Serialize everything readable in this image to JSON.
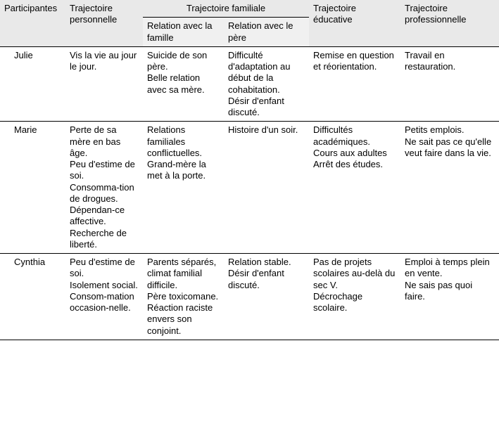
{
  "table": {
    "background_header": "#e9e9e9",
    "border_color": "#000000",
    "font_family": "Arial",
    "font_size_pt": 10,
    "columns": {
      "participants": "Participantes",
      "personal": "Trajectoire personnelle",
      "family_group": "Trajectoire familiale",
      "family_sub1": "Relation avec la famille",
      "family_sub2": "Relation avec le père",
      "education": "Trajectoire éducative",
      "work": "Trajectoire professionnelle"
    },
    "rows": [
      {
        "name": "Julie",
        "personal": "Vis la vie au jour le jour.",
        "family1": "Suicide de son père.\nBelle relation avec sa mère.",
        "family2": "Difficulté d'adaptation au début de la cohabitation.\nDésir d'enfant discuté.",
        "education": "Remise en question et réorientation.",
        "work": "Travail en restauration."
      },
      {
        "name": "Marie",
        "personal": "Perte de sa mère en bas âge.\n Peu d'estime de soi.\nConsomma-tion de drogues.\nDépendan-ce affective.\nRecherche de liberté.",
        "family1": "Relations familiales conflictuelles.\nGrand-mère la met à la porte.",
        "family2": "Histoire d'un soir.",
        "education": "Difficultés académiques.\nCours aux adultes\nArrêt des études.",
        "work": "Petits emplois.\nNe sait pas ce qu'elle veut faire dans la vie."
      },
      {
        "name": "Cynthia",
        "personal": "Peu d'estime de soi.\nIsolement social.\nConsom-mation occasion-nelle.",
        "family1": "Parents séparés, climat familial difficile.\nPère toxicomane.\nRéaction raciste envers son conjoint.",
        "family2": "Relation stable.\n Désir d'enfant discuté.",
        "education": "Pas de projets scolaires au-delà du sec V.\nDécrochage scolaire.",
        "work": "Emploi à temps plein en vente.\n  Ne sais pas quoi faire."
      }
    ]
  }
}
